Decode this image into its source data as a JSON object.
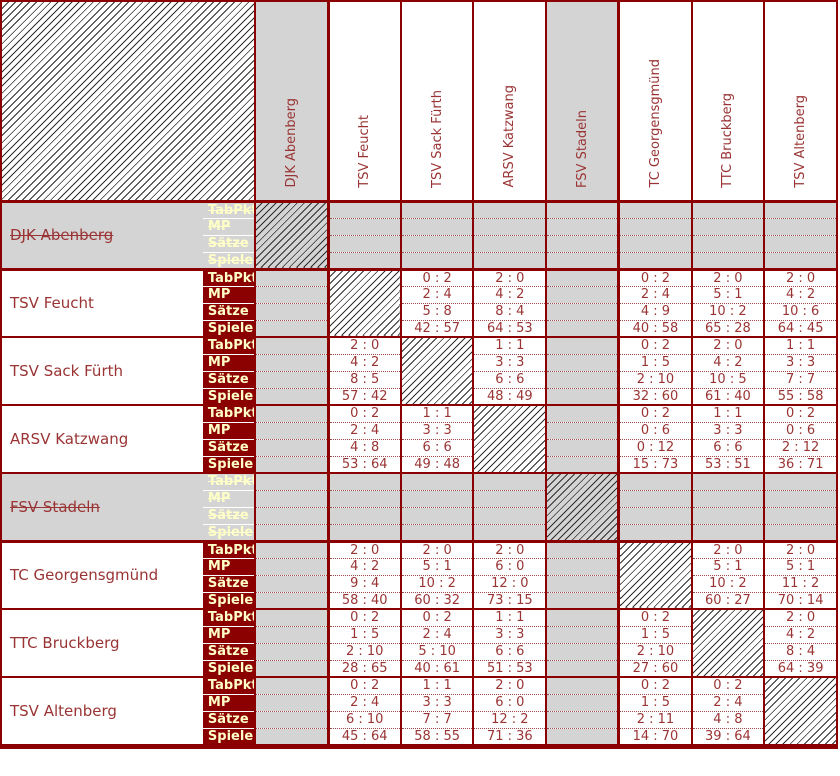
{
  "colors": {
    "maroon": "#8b0000",
    "pale_yellow": "#ffffc8",
    "gray": "#d4d4d4",
    "text_red": "#9a3434",
    "white": "#ffffff"
  },
  "row_labels": [
    "TabPkt",
    "MP",
    "Sätze",
    "Spiele"
  ],
  "teams": [
    {
      "name": "DJK Abenberg",
      "withdrawn": true
    },
    {
      "name": "TSV Feucht",
      "withdrawn": false
    },
    {
      "name": "TSV Sack Fürth",
      "withdrawn": false
    },
    {
      "name": "ARSV Katzwang",
      "withdrawn": false
    },
    {
      "name": "FSV Stadeln",
      "withdrawn": true
    },
    {
      "name": "TC Georgensgmünd",
      "withdrawn": false
    },
    {
      "name": "TTC Bruckberg",
      "withdrawn": false
    },
    {
      "name": "TSV Altenberg",
      "withdrawn": false
    }
  ],
  "matrix": [
    [
      "diag",
      null,
      null,
      null,
      null,
      null,
      null,
      null
    ],
    [
      null,
      "diag",
      [
        "0 : 2",
        "2 : 4",
        "5 : 8",
        "42 : 57"
      ],
      [
        "2 : 0",
        "4 : 2",
        "8 : 4",
        "64 : 53"
      ],
      null,
      [
        "0 : 2",
        "2 : 4",
        "4 : 9",
        "40 : 58"
      ],
      [
        "2 : 0",
        "5 : 1",
        "10 : 2",
        "65 : 28"
      ],
      [
        "2 : 0",
        "4 : 2",
        "10 : 6",
        "64 : 45"
      ]
    ],
    [
      null,
      [
        "2 : 0",
        "4 : 2",
        "8 : 5",
        "57 : 42"
      ],
      "diag",
      [
        "1 : 1",
        "3 : 3",
        "6 : 6",
        "48 : 49"
      ],
      null,
      [
        "0 : 2",
        "1 : 5",
        "2 : 10",
        "32 : 60"
      ],
      [
        "2 : 0",
        "4 : 2",
        "10 : 5",
        "61 : 40"
      ],
      [
        "1 : 1",
        "3 : 3",
        "7 : 7",
        "55 : 58"
      ]
    ],
    [
      null,
      [
        "0 : 2",
        "2 : 4",
        "4 : 8",
        "53 : 64"
      ],
      [
        "1 : 1",
        "3 : 3",
        "6 : 6",
        "49 : 48"
      ],
      "diag",
      null,
      [
        "0 : 2",
        "0 : 6",
        "0 : 12",
        "15 : 73"
      ],
      [
        "1 : 1",
        "3 : 3",
        "6 : 6",
        "53 : 51"
      ],
      [
        "0 : 2",
        "0 : 6",
        "2 : 12",
        "36 : 71"
      ]
    ],
    [
      null,
      null,
      null,
      null,
      "diag",
      null,
      null,
      null
    ],
    [
      null,
      [
        "2 : 0",
        "4 : 2",
        "9 : 4",
        "58 : 40"
      ],
      [
        "2 : 0",
        "5 : 1",
        "10 : 2",
        "60 : 32"
      ],
      [
        "2 : 0",
        "6 : 0",
        "12 : 0",
        "73 : 15"
      ],
      null,
      "diag",
      [
        "2 : 0",
        "5 : 1",
        "10 : 2",
        "60 : 27"
      ],
      [
        "2 : 0",
        "5 : 1",
        "11 : 2",
        "70 : 14"
      ]
    ],
    [
      null,
      [
        "0 : 2",
        "1 : 5",
        "2 : 10",
        "28 : 65"
      ],
      [
        "0 : 2",
        "2 : 4",
        "5 : 10",
        "40 : 61"
      ],
      [
        "1 : 1",
        "3 : 3",
        "6 : 6",
        "51 : 53"
      ],
      null,
      [
        "0 : 2",
        "1 : 5",
        "2 : 10",
        "27 : 60"
      ],
      "diag",
      [
        "2 : 0",
        "4 : 2",
        "8 : 4",
        "64 : 39"
      ]
    ],
    [
      null,
      [
        "0 : 2",
        "2 : 4",
        "6 : 10",
        "45 : 64"
      ],
      [
        "1 : 1",
        "3 : 3",
        "7 : 7",
        "58 : 55"
      ],
      [
        "2 : 0",
        "6 : 0",
        "12 : 2",
        "71 : 36"
      ],
      null,
      [
        "0 : 2",
        "1 : 5",
        "2 : 11",
        "14 : 70"
      ],
      [
        "0 : 2",
        "2 : 4",
        "4 : 8",
        "39 : 64"
      ],
      "diag"
    ]
  ]
}
